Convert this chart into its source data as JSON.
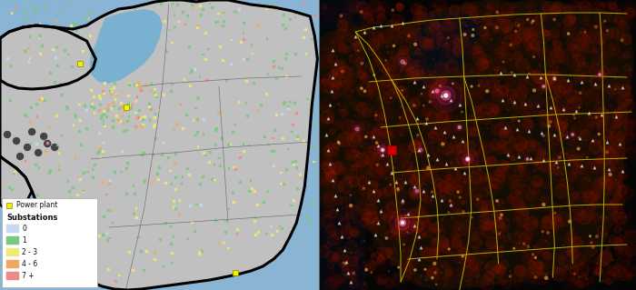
{
  "fig_width": 7.0,
  "fig_height": 3.19,
  "dpi": 100,
  "legend": {
    "power_plant_color": "#e8e800",
    "power_plant_label": "Power plant",
    "substation_title": "Substations",
    "entries": [
      {
        "color": "#c8d8f0",
        "label": "0"
      },
      {
        "color": "#7cc87c",
        "label": "1"
      },
      {
        "color": "#f0e878",
        "label": "2 - 3"
      },
      {
        "color": "#f0a860",
        "label": "4 - 6"
      },
      {
        "color": "#f08888",
        "label": "7 +"
      }
    ]
  },
  "left_bg_water": "#8ab4d4",
  "left_bg_land": "#c0c0c0",
  "right_bg": "#050505",
  "road_color": "#c8b800",
  "red_square_color": "#cc0000",
  "marker_color": "#d8d8d8",
  "sq_size": 1.8,
  "n_squares": 600,
  "sq_weights": [
    0.05,
    0.6,
    0.22,
    0.08,
    0.05
  ]
}
